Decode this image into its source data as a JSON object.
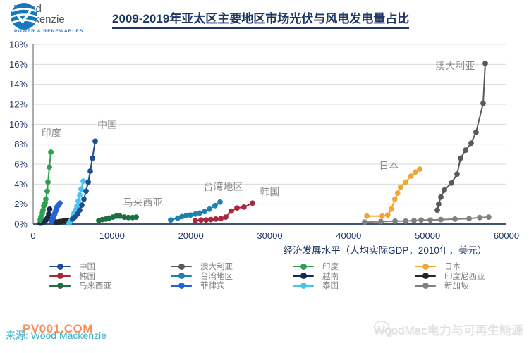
{
  "header": {
    "logo": {
      "line1": "Wood",
      "line2": "Mackenzie",
      "tagline": "POWER & RENEWABLES"
    },
    "title": "2009-2019年亚太区主要地区市场光伏与风电发电量占比"
  },
  "chart_data": {
    "type": "line",
    "title": "2009-2019年亚太区主要地区市场光伏与风电发电量占比",
    "xlabel": "经济发展水平（人均实际GDP，2010年，美元）",
    "ylabel": "",
    "xlim": [
      0,
      60000
    ],
    "ylim": [
      0,
      18
    ],
    "x_ticks": [
      0,
      10000,
      20000,
      30000,
      40000,
      50000,
      60000
    ],
    "y_tick_step": 2,
    "y_tick_suffix": "%",
    "grid": "horizontal",
    "legend_position": "bottom",
    "axis_color": "#3F5572",
    "grid_color": "#D9D9D9",
    "series": [
      {
        "name": "新加坡",
        "color": "#808080",
        "x": [
          42030,
          44090,
          45880,
          47220,
          48290,
          49190,
          50350,
          51690,
          53480,
          55270,
          56610,
          57760
        ],
        "y": [
          0.2,
          0.25,
          0.3,
          0.3,
          0.35,
          0.4,
          0.4,
          0.45,
          0.5,
          0.55,
          0.65,
          0.7
        ]
      },
      {
        "name": "印度尼西亚",
        "color": "#262626",
        "x": [
          2860,
          3020,
          3180,
          3340,
          3500,
          3660,
          3820,
          3980,
          4140,
          4300,
          4470
        ],
        "y": [
          0.2,
          0.2,
          0.2,
          0.25,
          0.25,
          0.25,
          0.3,
          0.3,
          0.3,
          0.3,
          0.35
        ]
      },
      {
        "name": "马来西亚",
        "color": "#1D6F42",
        "x": [
          8320,
          8760,
          9210,
          9660,
          10100,
          10550,
          11000,
          11540,
          12070,
          12610,
          13060
        ],
        "y": [
          0.35,
          0.45,
          0.5,
          0.6,
          0.7,
          0.8,
          0.8,
          0.7,
          0.65,
          0.65,
          0.7
        ]
      },
      {
        "name": "越南",
        "color": "#122B4E",
        "x": [
          900,
          1020,
          1140,
          1260,
          1380,
          1500,
          1620,
          1740,
          1860,
          1980,
          2100
        ],
        "y": [
          0.1,
          0.1,
          0.15,
          0.2,
          0.25,
          0.3,
          0.4,
          0.5,
          0.7,
          1.0,
          1.5
        ]
      },
      {
        "name": "菲律宾",
        "color": "#2563D4",
        "x": [
          2330,
          2430,
          2520,
          2610,
          2700,
          2790,
          2880,
          2970,
          3060,
          3220,
          3400
        ],
        "y": [
          0.3,
          0.45,
          0.6,
          0.8,
          0.95,
          1.15,
          1.35,
          1.55,
          1.75,
          1.9,
          2.1
        ]
      },
      {
        "name": "泰国",
        "color": "#47C4F2",
        "x": [
          4560,
          4740,
          4920,
          5100,
          5190,
          5370,
          5540,
          5720,
          5900,
          6080,
          6350
        ],
        "y": [
          0.1,
          0.3,
          0.5,
          0.8,
          1.1,
          1.4,
          1.8,
          2.3,
          2.9,
          3.5,
          4.3
        ]
      },
      {
        "name": "台湾地区",
        "color": "#1F7FAD",
        "x": [
          17440,
          18330,
          18870,
          19400,
          19940,
          20570,
          21100,
          21730,
          22360,
          23070,
          23700
        ],
        "y": [
          0.4,
          0.6,
          0.75,
          0.85,
          0.9,
          1.0,
          1.1,
          1.25,
          1.5,
          1.85,
          2.2
        ]
      },
      {
        "name": "韩国",
        "color": "#A8293E",
        "x": [
          20570,
          21280,
          21910,
          22530,
          23160,
          23790,
          24410,
          25130,
          25840,
          26730,
          27810
        ],
        "y": [
          0.35,
          0.4,
          0.4,
          0.45,
          0.5,
          0.55,
          0.7,
          1.3,
          1.6,
          1.7,
          2.1
        ]
      },
      {
        "name": "日本",
        "color": "#F0A632",
        "x": [
          42300,
          44250,
          44960,
          45410,
          45850,
          46210,
          46570,
          47200,
          47910,
          48450,
          49000
        ],
        "y": [
          0.8,
          0.8,
          0.9,
          1.5,
          2.5,
          3.1,
          3.7,
          4.2,
          4.8,
          5.2,
          5.5
        ]
      },
      {
        "name": "印度",
        "color": "#2EA14E",
        "x": [
          890,
          980,
          1160,
          1250,
          1340,
          1520,
          1610,
          1790,
          1880,
          2060,
          2240
        ],
        "y": [
          0.4,
          0.7,
          1.1,
          1.4,
          1.8,
          2.1,
          2.5,
          3.3,
          4.2,
          5.7,
          7.2
        ]
      },
      {
        "name": "中国",
        "color": "#1D4F91",
        "x": [
          5000,
          5280,
          5630,
          5900,
          6170,
          6440,
          6710,
          6980,
          7240,
          7510,
          7870
        ],
        "y": [
          0.5,
          0.7,
          1.0,
          1.4,
          1.9,
          2.5,
          3.3,
          4.2,
          5.3,
          6.6,
          8.3
        ]
      },
      {
        "name": "澳大利亚",
        "color": "#595959",
        "x": [
          51240,
          51410,
          51680,
          52130,
          53020,
          53740,
          54190,
          54810,
          55530,
          56150,
          57050,
          57320
        ],
        "y": [
          1.4,
          2.0,
          2.7,
          3.4,
          4.1,
          5.0,
          6.6,
          7.4,
          8.1,
          9.2,
          12.1,
          16.1
        ]
      }
    ],
    "annotations": [
      {
        "text": "印度",
        "x": 2300,
        "y": 8.8
      },
      {
        "text": "中国",
        "x": 9400,
        "y": 9.6
      },
      {
        "text": "马来西亚",
        "x": 13900,
        "y": 1.8
      },
      {
        "text": "台湾地区",
        "x": 24100,
        "y": 3.4
      },
      {
        "text": "韩国",
        "x": 30000,
        "y": 2.9
      },
      {
        "text": "日本",
        "x": 45100,
        "y": 5.5
      },
      {
        "text": "澳大利亚",
        "x": 53500,
        "y": 15.5
      }
    ]
  },
  "legend": {
    "columns": [
      [
        "中国",
        "韩国",
        "马来西亚"
      ],
      [
        "澳大利亚",
        "台湾地区",
        "菲律宾"
      ],
      [
        "印度",
        "越南",
        "泰国"
      ],
      [
        "日本",
        "印度尼西亚",
        "新加坡"
      ]
    ]
  },
  "footer": {
    "source": "来源: Wood Mackenzie",
    "watermark": "PV001.COM",
    "brand": "WoodMac电力与可再生能源"
  }
}
